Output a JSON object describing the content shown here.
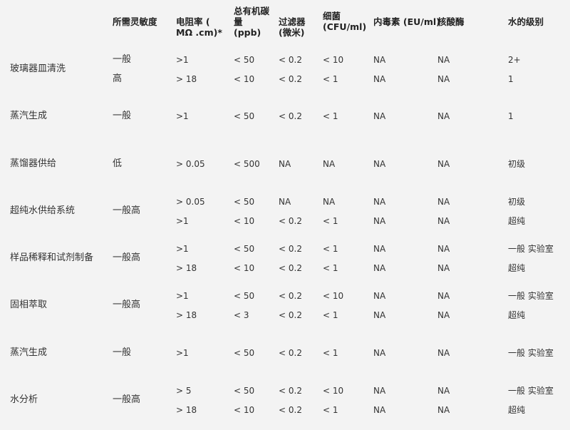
{
  "headers": [
    "所需灵敏度",
    "电阻率 (\nMΩ .cm)*",
    "总有机碳\n量\n(ppb)",
    "过滤器\n(微米)",
    "细菌\n(CFU/ml)",
    "内毒素 (EU/ml)",
    "核酸酶",
    "水的级别"
  ],
  "rows": [
    {
      "application": "玻璃器皿清洗",
      "subrows": [
        {
          "sensitivity": "一般",
          "resistivity": ">1",
          "toc": "< 50",
          "filter": "< 0.2",
          "bacteria": "< 10",
          "endotoxin": "NA",
          "nuclease": "NA",
          "grade": "2+"
        },
        {
          "sensitivity": "高",
          "resistivity": "> 18",
          "toc": "< 10",
          "filter": "< 0.2",
          "bacteria": "< 1",
          "endotoxin": "NA",
          "nuclease": "NA",
          "grade": "1"
        }
      ]
    },
    {
      "application": "蒸汽生成",
      "subrows": [
        {
          "sensitivity": "一般",
          "resistivity": ">1",
          "toc": "< 50",
          "filter": "< 0.2",
          "bacteria": "< 1",
          "endotoxin": "NA",
          "nuclease": "NA",
          "grade": "1"
        }
      ]
    },
    {
      "application": "蒸馏器供给",
      "subrows": [
        {
          "sensitivity": "低",
          "resistivity": "> 0.05",
          "toc": "< 500",
          "filter": "NA",
          "bacteria": "NA",
          "endotoxin": "NA",
          "nuclease": "NA",
          "grade": "初级"
        }
      ]
    },
    {
      "application": "超纯水供给系统",
      "sensitivity": "一般高",
      "subrows": [
        {
          "resistivity": "> 0.05",
          "toc": "< 50",
          "filter": "NA",
          "bacteria": "NA",
          "endotoxin": "NA",
          "nuclease": "NA",
          "grade": "初级"
        },
        {
          "resistivity": ">1",
          "toc": "< 10",
          "filter": "< 0.2",
          "bacteria": "< 1",
          "endotoxin": "NA",
          "nuclease": "NA",
          "grade": "超纯"
        }
      ]
    },
    {
      "application": "样品稀释和试剂制备",
      "sensitivity": "一般高",
      "subrows": [
        {
          "resistivity": ">1",
          "toc": "< 50",
          "filter": "< 0.2",
          "bacteria": "< 1",
          "endotoxin": "NA",
          "nuclease": "NA",
          "grade": "一般 实验室"
        },
        {
          "resistivity": "> 18",
          "toc": "< 10",
          "filter": "< 0.2",
          "bacteria": "< 1",
          "endotoxin": "NA",
          "nuclease": "NA",
          "grade": "超纯"
        }
      ]
    },
    {
      "application": "固相萃取",
      "sensitivity": "一般高",
      "subrows": [
        {
          "resistivity": ">1",
          "toc": "< 50",
          "filter": "< 0.2",
          "bacteria": "< 10",
          "endotoxin": "NA",
          "nuclease": "NA",
          "grade": "一般 实验室"
        },
        {
          "resistivity": "> 18",
          "toc": "< 3",
          "filter": "< 0.2",
          "bacteria": "< 1",
          "endotoxin": "NA",
          "nuclease": "NA",
          "grade": "超纯"
        }
      ]
    },
    {
      "application": "蒸汽生成",
      "subrows": [
        {
          "sensitivity": "一般",
          "resistivity": ">1",
          "toc": "< 50",
          "filter": "< 0.2",
          "bacteria": "< 1",
          "endotoxin": "NA",
          "nuclease": "NA",
          "grade": "一般 实验室"
        }
      ]
    },
    {
      "application": "水分析",
      "sensitivity": "一般高",
      "subrows": [
        {
          "resistivity": "> 5",
          "toc": "< 50",
          "filter": "< 0.2",
          "bacteria": "< 10",
          "endotoxin": "NA",
          "nuclease": "NA",
          "grade": "一般 实验室"
        },
        {
          "resistivity": "> 18",
          "toc": "< 10",
          "filter": "< 0.2",
          "bacteria": "< 1",
          "endotoxin": "NA",
          "nuclease": "NA",
          "grade": "超纯"
        }
      ]
    }
  ]
}
